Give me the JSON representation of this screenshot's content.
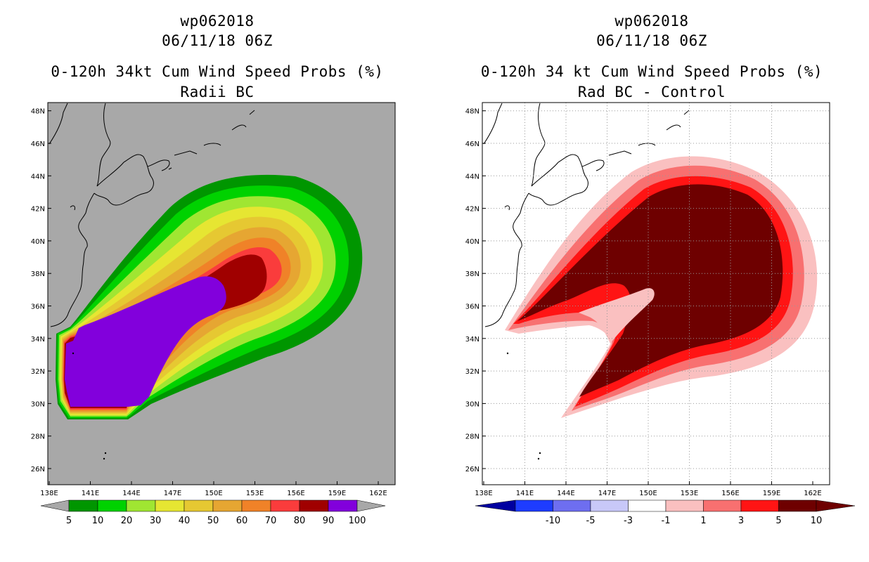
{
  "panels": [
    {
      "id": "radii-bc",
      "title_line1": "wp062018",
      "title_line2": "06/11/18 06Z",
      "title_line3": "0-120h 34kt Cum Wind Speed Probs (%)",
      "title_line4": "Radii BC",
      "background_color": "#a8a8a8",
      "colorbar": {
        "labels": [
          "5",
          "10",
          "20",
          "30",
          "40",
          "50",
          "60",
          "70",
          "80",
          "90",
          "100"
        ],
        "colors": [
          "#009600",
          "#00d200",
          "#a0e632",
          "#e6e632",
          "#e6c832",
          "#e6a632",
          "#f08228",
          "#fa3c3c",
          "#a00000",
          "#8200dc"
        ]
      }
    },
    {
      "id": "rad-bc-control",
      "title_line1": "wp062018",
      "title_line2": "06/11/18 06Z",
      "title_line3": "0-120h 34 kt Cum Wind Speed Probs (%)",
      "title_line4": "Rad BC - Control",
      "background_color": "#ffffff",
      "colorbar": {
        "labels": [
          "-10",
          "-5",
          "-3",
          "-1",
          "1",
          "3",
          "5",
          "10"
        ],
        "colors": [
          "#1e3cff",
          "#6e6ef0",
          "#c8c8f8",
          "#ffffff",
          "#fac0c0",
          "#f87070",
          "#ff1414",
          "#6e0000"
        ],
        "end_low": "#0000a0",
        "end_high": "#6e0000"
      }
    }
  ],
  "axes": {
    "x_labels": [
      "138E",
      "141E",
      "144E",
      "147E",
      "150E",
      "153E",
      "156E",
      "159E",
      "162E"
    ],
    "y_labels": [
      "26N",
      "28N",
      "30N",
      "32N",
      "34N",
      "36N",
      "38N",
      "40N",
      "42N",
      "44N",
      "46N",
      "48N"
    ]
  }
}
